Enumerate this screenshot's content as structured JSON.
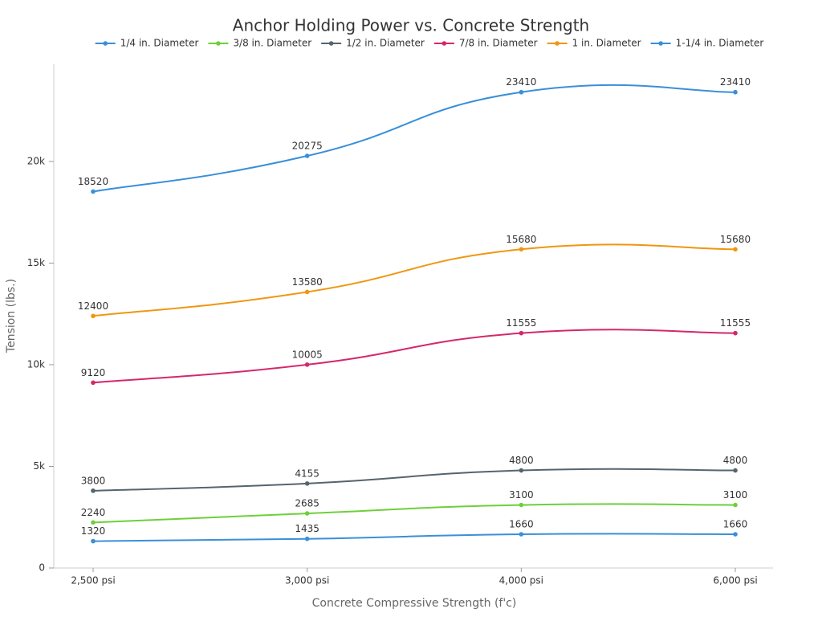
{
  "chart_data": {
    "type": "line",
    "title": "Anchor Holding Power vs. Concrete Strength",
    "x_label": "Concrete Compressive Strength (f'c)",
    "y_label": "Tension (lbs.)",
    "categories": [
      "2,500 psi",
      "3,000 psi",
      "4,000 psi",
      "6,000 psi"
    ],
    "series": [
      {
        "name": "1/4 in. Diameter",
        "color": "#3a8fd9",
        "values": [
          1320,
          1435,
          1660,
          1660
        ]
      },
      {
        "name": "3/8 in. Diameter",
        "color": "#6dd03a",
        "values": [
          2240,
          2685,
          3100,
          3100
        ]
      },
      {
        "name": "1/2 in. Diameter",
        "color": "#56646e",
        "values": [
          3800,
          4155,
          4800,
          4800
        ]
      },
      {
        "name": "7/8 in. Diameter",
        "color": "#d4286a",
        "values": [
          9120,
          10005,
          11555,
          11555
        ]
      },
      {
        "name": "1 in. Diameter",
        "color": "#f0960f",
        "values": [
          12400,
          13580,
          15680,
          15680
        ]
      },
      {
        "name": "1-1/4 in. Diameter",
        "color": "#3a8fd9",
        "values": [
          18520,
          20275,
          23410,
          23410
        ]
      }
    ],
    "ylim": [
      0,
      25000
    ],
    "yticks": [
      0,
      {
        "value": 5000,
        "label": "5k"
      },
      {
        "value": 10000,
        "label": "10k"
      },
      {
        "value": 15000,
        "label": "15k"
      },
      {
        "value": 20000,
        "label": "20k"
      }
    ],
    "smooth": true,
    "data_labels": true
  }
}
